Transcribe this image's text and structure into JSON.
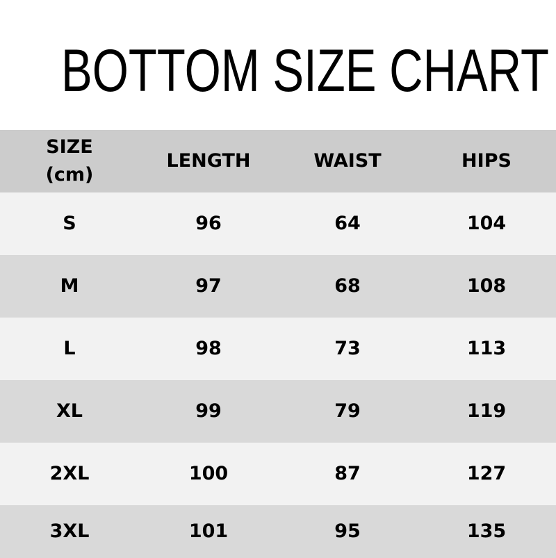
{
  "title": "BOTTOM SIZE CHART",
  "headers": [
    "SIZE",
    "(cm)",
    "LENGTH",
    "WAIST",
    "HIPS"
  ],
  "rows": [
    [
      "S",
      "96",
      "64",
      "104"
    ],
    [
      "M",
      "97",
      "68",
      "108"
    ],
    [
      "L",
      "98",
      "73",
      "113"
    ],
    [
      "XL",
      "99",
      "79",
      "119"
    ],
    [
      "2XL",
      "100",
      "87",
      "127"
    ],
    [
      "3XL",
      "101",
      "95",
      "135"
    ]
  ],
  "colors": {
    "header_bg": "#cccccc",
    "row_light": "#f2f2f2",
    "row_dark": "#d9d9d9"
  }
}
